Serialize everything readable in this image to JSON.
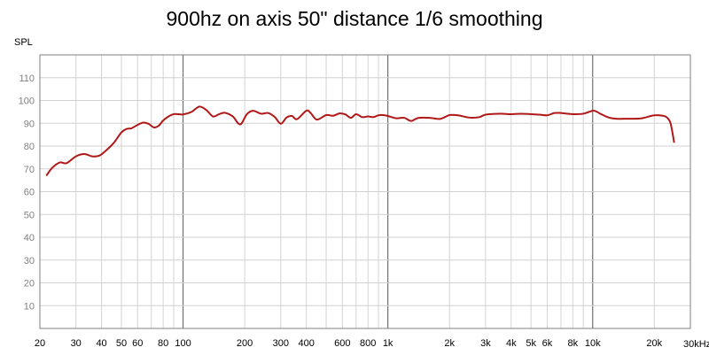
{
  "chart_data": {
    "type": "line",
    "title": "900hz on axis 50\" distance 1/6 smoothing",
    "ylabel": "SPL",
    "xunit_label": "30kHz",
    "x_scale": "log",
    "xlim": [
      20,
      30000
    ],
    "ylim": [
      0,
      120
    ],
    "grid": true,
    "y_ticks": [
      10,
      20,
      30,
      40,
      50,
      60,
      70,
      80,
      90,
      100,
      110
    ],
    "x_ticks": [
      {
        "value": 20,
        "label": "20"
      },
      {
        "value": 30,
        "label": "30"
      },
      {
        "value": 40,
        "label": "40"
      },
      {
        "value": 50,
        "label": "50"
      },
      {
        "value": 60,
        "label": "60"
      },
      {
        "value": 80,
        "label": "80"
      },
      {
        "value": 100,
        "label": "100"
      },
      {
        "value": 200,
        "label": "200"
      },
      {
        "value": 300,
        "label": "300"
      },
      {
        "value": 400,
        "label": "400"
      },
      {
        "value": 600,
        "label": "600"
      },
      {
        "value": 800,
        "label": "800"
      },
      {
        "value": 1000,
        "label": "1k"
      },
      {
        "value": 2000,
        "label": "2k"
      },
      {
        "value": 3000,
        "label": "3k"
      },
      {
        "value": 4000,
        "label": "4k"
      },
      {
        "value": 5000,
        "label": "5k"
      },
      {
        "value": 6000,
        "label": "6k"
      },
      {
        "value": 8000,
        "label": "8k"
      },
      {
        "value": 10000,
        "label": "10k"
      },
      {
        "value": 20000,
        "label": "20k"
      }
    ],
    "series": [
      {
        "color": "#b01818",
        "x": [
          21.5,
          23,
          25,
          27,
          30,
          33,
          36,
          39,
          42,
          46,
          50,
          53,
          56,
          60,
          64,
          68,
          72,
          76,
          80,
          85,
          90,
          95,
          100,
          110,
          120,
          130,
          140,
          150,
          160,
          175,
          190,
          205,
          220,
          240,
          260,
          280,
          300,
          320,
          340,
          360,
          400,
          420,
          450,
          500,
          540,
          580,
          620,
          660,
          700,
          750,
          800,
          850,
          900,
          950,
          1000,
          1100,
          1200,
          1300,
          1400,
          1600,
          1800,
          2000,
          2200,
          2500,
          2800,
          3000,
          3500,
          4000,
          4500,
          5000,
          5500,
          6000,
          6500,
          7000,
          8000,
          9000,
          10000,
          10500,
          11000,
          12000,
          13000,
          15000,
          17000,
          18000,
          20000,
          22000,
          23000,
          24000,
          25000
        ],
        "values": [
          67,
          70.5,
          72.8,
          72.5,
          75.5,
          76.5,
          75.5,
          75.8,
          78,
          81.5,
          86,
          87.5,
          87.8,
          89.3,
          90.3,
          89.7,
          88.2,
          88.9,
          91.2,
          93,
          94,
          94,
          93.9,
          95,
          97.3,
          95.8,
          93,
          94,
          94.6,
          93,
          89.5,
          94,
          95.5,
          94.2,
          94.5,
          92.8,
          89.8,
          92.5,
          93.2,
          91.8,
          95.5,
          94.5,
          91.6,
          93.6,
          93.3,
          94.3,
          93.9,
          92.4,
          94,
          92.7,
          93,
          92.7,
          93.5,
          93.6,
          93.2,
          92.2,
          92.4,
          91,
          92.3,
          92.4,
          91.9,
          93.6,
          93.5,
          92.5,
          92.7,
          93.8,
          94.2,
          94,
          94.2,
          94,
          93.8,
          93.5,
          94.5,
          94.5,
          94,
          94.2,
          95.5,
          95,
          94,
          92.5,
          92,
          92,
          92.1,
          92.5,
          93.5,
          93.3,
          92.6,
          90,
          81.5
        ]
      }
    ]
  }
}
